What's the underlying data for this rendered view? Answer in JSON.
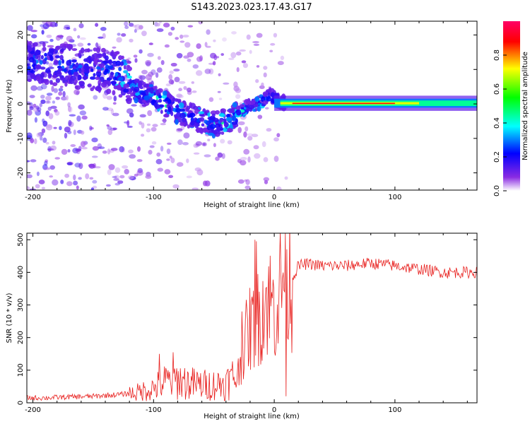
{
  "figure": {
    "title": "S143.2023.023.17.43.G17"
  },
  "chart_data": [
    {
      "type": "heatmap",
      "name": "spectrogram",
      "xlabel": "Height of straight line (km)",
      "ylabel": "Frequency (Hz)",
      "xlim": [
        -205,
        168
      ],
      "ylim": [
        -25,
        24
      ],
      "xticks": [
        -200,
        -100,
        0,
        100
      ],
      "yticks": [
        -20,
        -10,
        0,
        10,
        20
      ],
      "colorbar": {
        "label": "Normalized spectral amplitude",
        "range": [
          0.0,
          1.0
        ],
        "ticks": [
          0.0,
          0.2,
          0.4,
          0.6,
          0.8
        ],
        "colormap": [
          "#ffffff",
          "#8a2be2",
          "#0000ff",
          "#00ffff",
          "#00ff00",
          "#ffff00",
          "#ff0000",
          "#ff0066"
        ]
      },
      "ridge": {
        "x": [
          -200,
          -170,
          -150,
          -130,
          -110,
          -95,
          -80,
          -65,
          -50,
          -40,
          -30,
          -20,
          -10,
          -3,
          5,
          15,
          50,
          100,
          168
        ],
        "y": [
          12,
          11,
          10,
          9,
          3,
          1,
          -2,
          -4,
          -6,
          -5,
          -3,
          -0.5,
          0.5,
          2.5,
          0.5,
          0,
          0,
          0,
          0.5
        ]
      },
      "grid": false,
      "legend": "none"
    },
    {
      "type": "line",
      "name": "snr",
      "xlabel": "Height of straight line (km)",
      "ylabel": "SNR (10 * v/v)",
      "xlim": [
        -205,
        168
      ],
      "ylim": [
        0,
        520
      ],
      "xticks": [
        -200,
        -100,
        0,
        100
      ],
      "yticks": [
        0,
        100,
        200,
        300,
        400,
        500
      ],
      "color": "#e8201e",
      "grid": false,
      "legend": "none",
      "x": [
        -205,
        -190,
        -170,
        -150,
        -130,
        -115,
        -100,
        -90,
        -80,
        -70,
        -60,
        -50,
        -40,
        -30,
        -25,
        -20,
        -15,
        -10,
        -5,
        0,
        5,
        8,
        10,
        12,
        15,
        20,
        25,
        30,
        40,
        50,
        60,
        70,
        80,
        90,
        100,
        110,
        120,
        130,
        140,
        150,
        160,
        168
      ],
      "y": [
        15,
        15,
        18,
        20,
        25,
        30,
        45,
        65,
        70,
        60,
        55,
        55,
        60,
        90,
        180,
        230,
        240,
        300,
        320,
        290,
        350,
        380,
        400,
        390,
        380,
        420,
        425,
        425,
        420,
        420,
        420,
        425,
        428,
        425,
        420,
        415,
        410,
        405,
        400,
        400,
        400,
        400
      ],
      "spikes": [
        {
          "x": -16,
          "y": 500
        },
        {
          "x": -15,
          "y": 495
        },
        {
          "x": 9,
          "y": 520
        },
        {
          "x": 10,
          "y": 20
        },
        {
          "x": -95,
          "y": 150
        },
        {
          "x": -84,
          "y": 155
        },
        {
          "x": -27,
          "y": 280
        }
      ]
    }
  ]
}
